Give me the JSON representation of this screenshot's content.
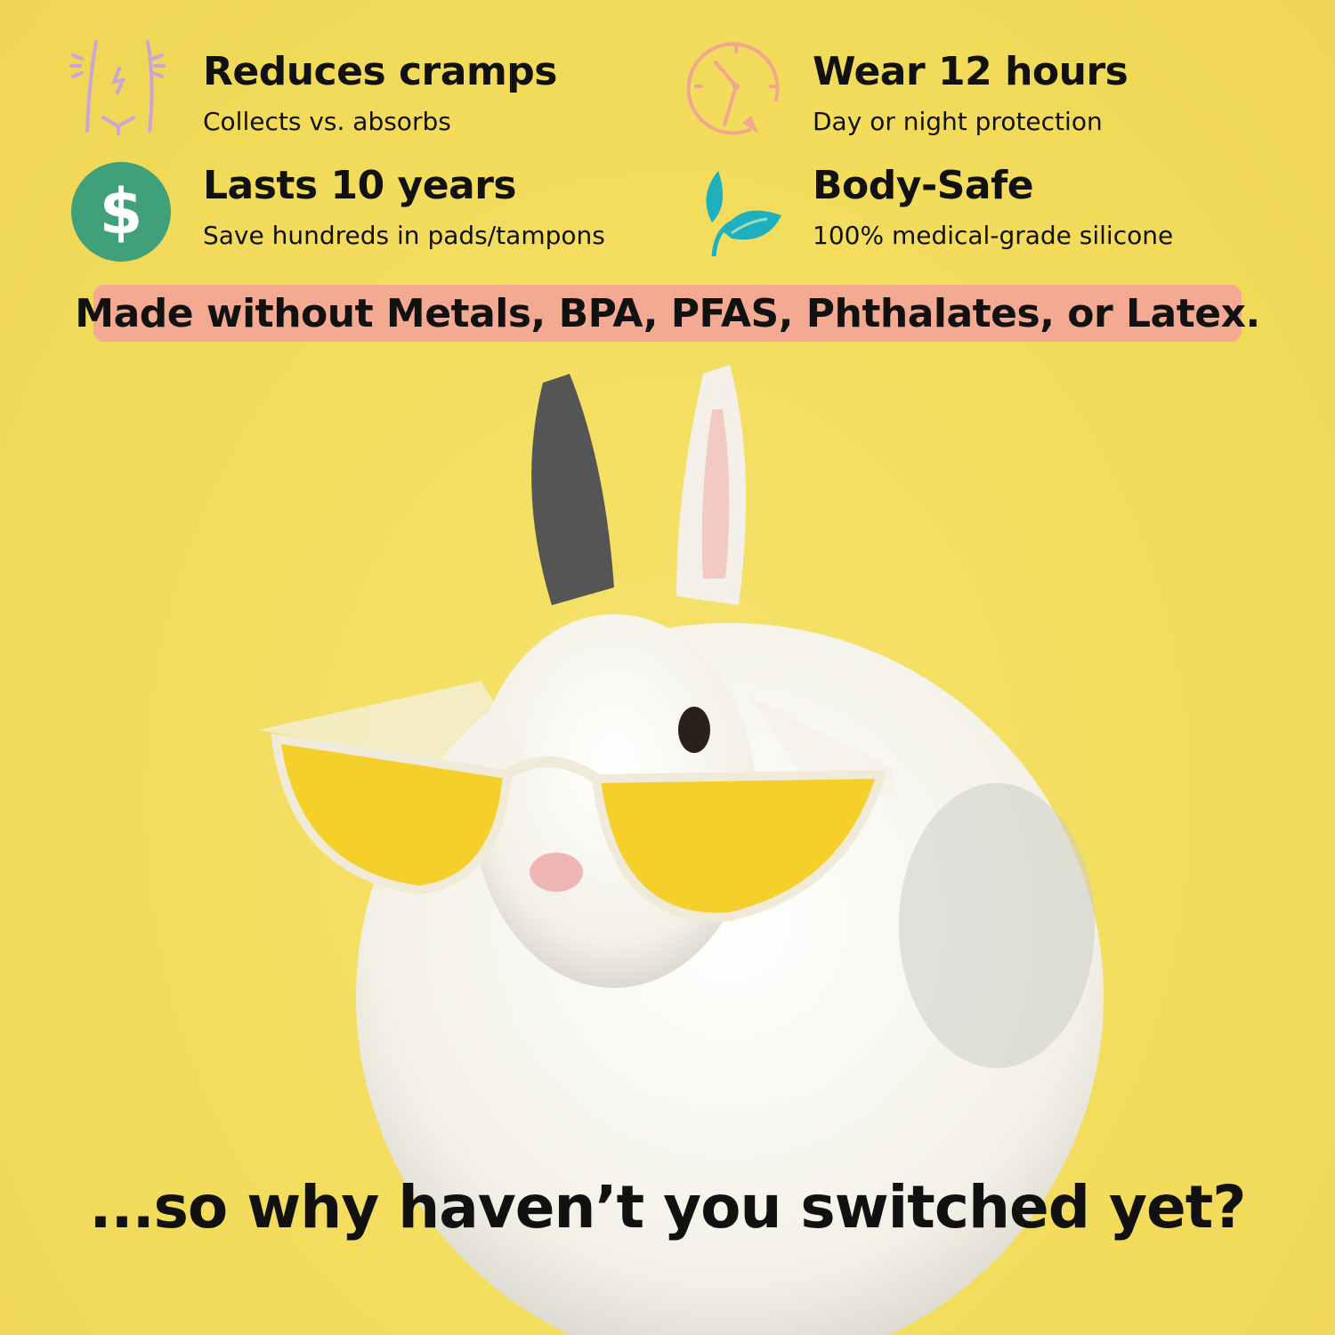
{
  "features": [
    {
      "title": "Reduces cramps",
      "subtitle": "Collects vs. absorbs",
      "icon": "body-cramp-icon",
      "icon_color": "#c9a6d8"
    },
    {
      "title": "Wear 12 hours",
      "subtitle": "Day or night protection",
      "icon": "clock-icon",
      "icon_color": "#f2a590"
    },
    {
      "title": "Lasts 10 years",
      "subtitle": "Save hundreds in pads/tampons",
      "icon": "dollar-icon",
      "icon_color": "#3fa07a"
    },
    {
      "title": "Body-Safe",
      "subtitle": "100% medical-grade silicone",
      "icon": "leaf-icon",
      "icon_color": "#1fb0c0"
    }
  ],
  "banner": {
    "text": "Made without Metals, BPA, PFAS, Phthalates, or Latex.",
    "color": "#f3a992"
  },
  "tagline": "...so why haven’t you switched yet?",
  "colors": {
    "background": "#f4df62",
    "text": "#111111"
  }
}
